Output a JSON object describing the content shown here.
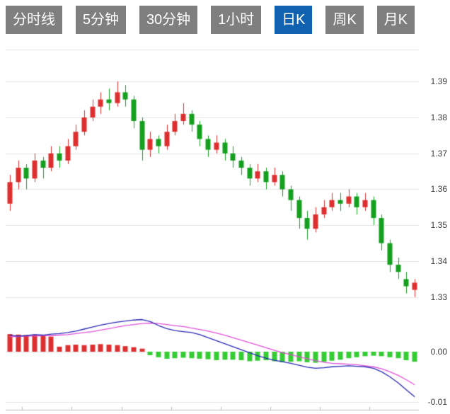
{
  "toolbar": {
    "active_bg": "#1062b0",
    "inactive_bg": "#7f7f7f",
    "tabs": [
      {
        "label": "分时线",
        "active": false
      },
      {
        "label": "5分钟",
        "active": false
      },
      {
        "label": "30分钟",
        "active": false
      },
      {
        "label": "1小时",
        "active": false
      },
      {
        "label": "日K",
        "active": true
      },
      {
        "label": "周K",
        "active": false
      },
      {
        "label": "月K",
        "active": false
      }
    ]
  },
  "chart_data": [
    {
      "type": "candlestick",
      "title": "",
      "xlabel": "",
      "ylabel": "",
      "up_color": "#dd2f2f",
      "down_color": "#14a01e",
      "grid_color": "#e4e4e4",
      "grid": true,
      "ylim": [
        1.327,
        1.3989
      ],
      "y_ticks": [
        {
          "label": "1.39",
          "value": 1.39
        },
        {
          "label": "1.38",
          "value": 1.38
        },
        {
          "label": "1.37",
          "value": 1.37
        },
        {
          "label": "1.36",
          "value": 1.36
        },
        {
          "label": "1.35",
          "value": 1.35
        },
        {
          "label": "1.34",
          "value": 1.34
        },
        {
          "label": "1.33",
          "value": 1.33
        }
      ],
      "candles": [
        [
          1.356,
          1.364,
          1.354,
          1.362
        ],
        [
          1.362,
          1.368,
          1.36,
          1.366
        ],
        [
          1.366,
          1.367,
          1.36,
          1.363
        ],
        [
          1.363,
          1.37,
          1.362,
          1.368
        ],
        [
          1.368,
          1.369,
          1.363,
          1.366
        ],
        [
          1.366,
          1.372,
          1.365,
          1.37
        ],
        [
          1.37,
          1.372,
          1.366,
          1.368
        ],
        [
          1.368,
          1.374,
          1.367,
          1.372
        ],
        [
          1.372,
          1.378,
          1.371,
          1.376
        ],
        [
          1.376,
          1.382,
          1.375,
          1.38
        ],
        [
          1.38,
          1.385,
          1.379,
          1.383
        ],
        [
          1.383,
          1.387,
          1.381,
          1.385
        ],
        [
          1.385,
          1.388,
          1.382,
          1.384
        ],
        [
          1.384,
          1.39,
          1.383,
          1.387
        ],
        [
          1.387,
          1.389,
          1.383,
          1.385
        ],
        [
          1.385,
          1.386,
          1.377,
          1.379
        ],
        [
          1.379,
          1.38,
          1.368,
          1.371
        ],
        [
          1.371,
          1.376,
          1.369,
          1.374
        ],
        [
          1.374,
          1.375,
          1.37,
          1.372
        ],
        [
          1.372,
          1.378,
          1.371,
          1.376
        ],
        [
          1.376,
          1.381,
          1.375,
          1.379
        ],
        [
          1.379,
          1.384,
          1.378,
          1.381
        ],
        [
          1.381,
          1.382,
          1.376,
          1.378
        ],
        [
          1.378,
          1.379,
          1.372,
          1.374
        ],
        [
          1.374,
          1.375,
          1.369,
          1.371
        ],
        [
          1.371,
          1.375,
          1.37,
          1.373
        ],
        [
          1.373,
          1.374,
          1.368,
          1.37
        ],
        [
          1.37,
          1.372,
          1.366,
          1.368
        ],
        [
          1.368,
          1.369,
          1.364,
          1.366
        ],
        [
          1.366,
          1.367,
          1.361,
          1.363
        ],
        [
          1.363,
          1.367,
          1.362,
          1.365
        ],
        [
          1.365,
          1.366,
          1.36,
          1.362
        ],
        [
          1.362,
          1.366,
          1.361,
          1.364
        ],
        [
          1.364,
          1.365,
          1.358,
          1.36
        ],
        [
          1.36,
          1.361,
          1.354,
          1.357
        ],
        [
          1.357,
          1.358,
          1.349,
          1.352
        ],
        [
          1.352,
          1.354,
          1.346,
          1.349
        ],
        [
          1.349,
          1.355,
          1.348,
          1.353
        ],
        [
          1.353,
          1.357,
          1.352,
          1.355
        ],
        [
          1.355,
          1.359,
          1.354,
          1.357
        ],
        [
          1.357,
          1.359,
          1.354,
          1.356
        ],
        [
          1.356,
          1.36,
          1.355,
          1.358
        ],
        [
          1.358,
          1.359,
          1.353,
          1.355
        ],
        [
          1.355,
          1.359,
          1.354,
          1.357
        ],
        [
          1.357,
          1.358,
          1.35,
          1.352
        ],
        [
          1.352,
          1.353,
          1.343,
          1.345
        ],
        [
          1.345,
          1.346,
          1.337,
          1.339
        ],
        [
          1.339,
          1.341,
          1.335,
          1.337
        ],
        [
          1.335,
          1.337,
          1.331,
          1.333
        ],
        [
          1.332,
          1.335,
          1.33,
          1.334
        ]
      ]
    },
    {
      "type": "macd",
      "title": "",
      "dif_color": "#2828b4",
      "dea_color": "#e052d8",
      "hist_up_color": "#dd2f2f",
      "hist_down_color": "#33cc33",
      "grid_color": "#e4e4e4",
      "ylim": [
        -0.0117,
        0.0076
      ],
      "y_ticks": [
        {
          "label": "0.00",
          "value": 0.0
        },
        {
          "label": "-0.01",
          "value": -0.01
        }
      ],
      "dif": [
        0.0033,
        0.0031,
        0.0032,
        0.0034,
        0.0033,
        0.0035,
        0.0036,
        0.0038,
        0.0041,
        0.0045,
        0.0049,
        0.0053,
        0.0056,
        0.0059,
        0.0061,
        0.0063,
        0.0064,
        0.006,
        0.0052,
        0.0046,
        0.0042,
        0.004,
        0.0038,
        0.0034,
        0.0028,
        0.0022,
        0.0016,
        0.001,
        0.0004,
        -0.0002,
        -0.0008,
        -0.0013,
        -0.0017,
        -0.002,
        -0.0023,
        -0.0027,
        -0.0031,
        -0.0033,
        -0.0032,
        -0.003,
        -0.0029,
        -0.0028,
        -0.0029,
        -0.003,
        -0.0033,
        -0.004,
        -0.005,
        -0.0062,
        -0.0076,
        -0.009
      ],
      "dea": [
        0.003,
        0.003,
        0.0031,
        0.0031,
        0.0032,
        0.0032,
        0.0033,
        0.0034,
        0.0036,
        0.0038,
        0.004,
        0.0043,
        0.0046,
        0.0049,
        0.0052,
        0.0054,
        0.0056,
        0.0057,
        0.0056,
        0.0054,
        0.0052,
        0.005,
        0.0047,
        0.0044,
        0.0041,
        0.0037,
        0.0033,
        0.0028,
        0.0023,
        0.0018,
        0.0013,
        0.0008,
        0.0003,
        -0.0002,
        -0.0006,
        -0.001,
        -0.0014,
        -0.0018,
        -0.0021,
        -0.0023,
        -0.0024,
        -0.0025,
        -0.0026,
        -0.0028,
        -0.003,
        -0.0034,
        -0.004,
        -0.0047,
        -0.0056,
        -0.0066
      ],
      "histogram": [
        0.0035,
        0.0034,
        0.0033,
        0.0034,
        0.0032,
        0.003,
        0.001,
        0.0013,
        0.0014,
        0.0013,
        0.0014,
        0.0015,
        0.0014,
        0.0013,
        0.0011,
        0.0009,
        0.0006,
        -0.0007,
        -0.0011,
        -0.0014,
        -0.0013,
        -0.0012,
        -0.0013,
        -0.0014,
        -0.0015,
        -0.0017,
        -0.0016,
        -0.0016,
        -0.0017,
        -0.0019,
        -0.0018,
        -0.0017,
        -0.0019,
        -0.0021,
        -0.002,
        -0.0019,
        -0.0021,
        -0.0022,
        -0.002,
        -0.0018,
        -0.0016,
        -0.0013,
        -0.0011,
        -0.0009,
        -0.0008,
        -0.0009,
        -0.0011,
        -0.0013,
        -0.0017,
        -0.002
      ]
    }
  ]
}
